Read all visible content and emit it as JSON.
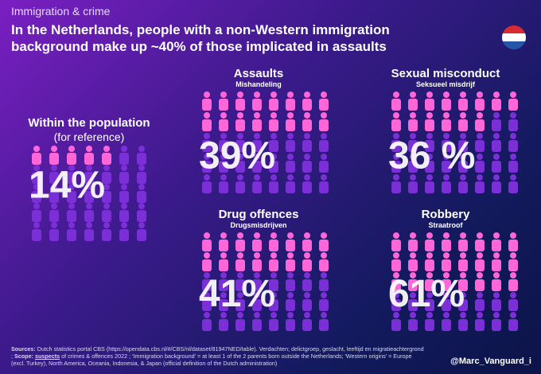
{
  "header": {
    "kicker": "Immigration & crime",
    "title": "In the Netherlands, people with a non-Western immigration background make up ~40% of those implicated in assaults"
  },
  "chart_data": [
    {
      "type": "pictogram",
      "title": "Within the population",
      "subtitle": "(for reference)",
      "values": [
        14
      ],
      "value_labels": [
        "14%"
      ],
      "color": "#ff66d8",
      "rest_color": "#7b2fd6"
    },
    {
      "type": "pictogram",
      "title": "Assaults",
      "subtitle": "Mishandeling",
      "values": [
        39
      ],
      "value_labels": [
        "39%"
      ],
      "color": "#ff66d8",
      "rest_color": "#7b2fd6"
    },
    {
      "type": "pictogram",
      "title": "Sexual misconduct",
      "subtitle": "Seksueel misdrijf",
      "values": [
        36
      ],
      "value_labels": [
        "36 %"
      ],
      "color": "#ff66d8",
      "rest_color": "#7b2fd6"
    },
    {
      "type": "pictogram",
      "title": "Drug offences",
      "subtitle": "Drugsmisdrijven",
      "values": [
        41
      ],
      "value_labels": [
        "41%"
      ],
      "color": "#ff66d8",
      "rest_color": "#7b2fd6"
    },
    {
      "type": "pictogram",
      "title": "Robbery",
      "subtitle": "Straatroof",
      "values": [
        61
      ],
      "value_labels": [
        "61%"
      ],
      "color": "#ff66d8",
      "rest_color": "#7b2fd6"
    }
  ],
  "footer": {
    "sources_label": "Sources:",
    "sources": "Dutch statistics portal CBS (https://opendata.cbs.nl/#/CBS/nl/dataset/81947NED/table). Verdachten; delictgroep, geslacht, leeftijd en migratieachtergrond ;",
    "scope_label": "Scope:",
    "scope_key": "suspects",
    "scope": "of crimes & offences 2022 ; 'Immigration background' = at least 1 of the 2 parents born outside the Netherlands; 'Western origins' = Europe (excl. Turkey), North America, Oceania, Indonesia, & Japan (official definition of the Dutch administration)",
    "credit": "@Marc_Vanguard_i"
  }
}
